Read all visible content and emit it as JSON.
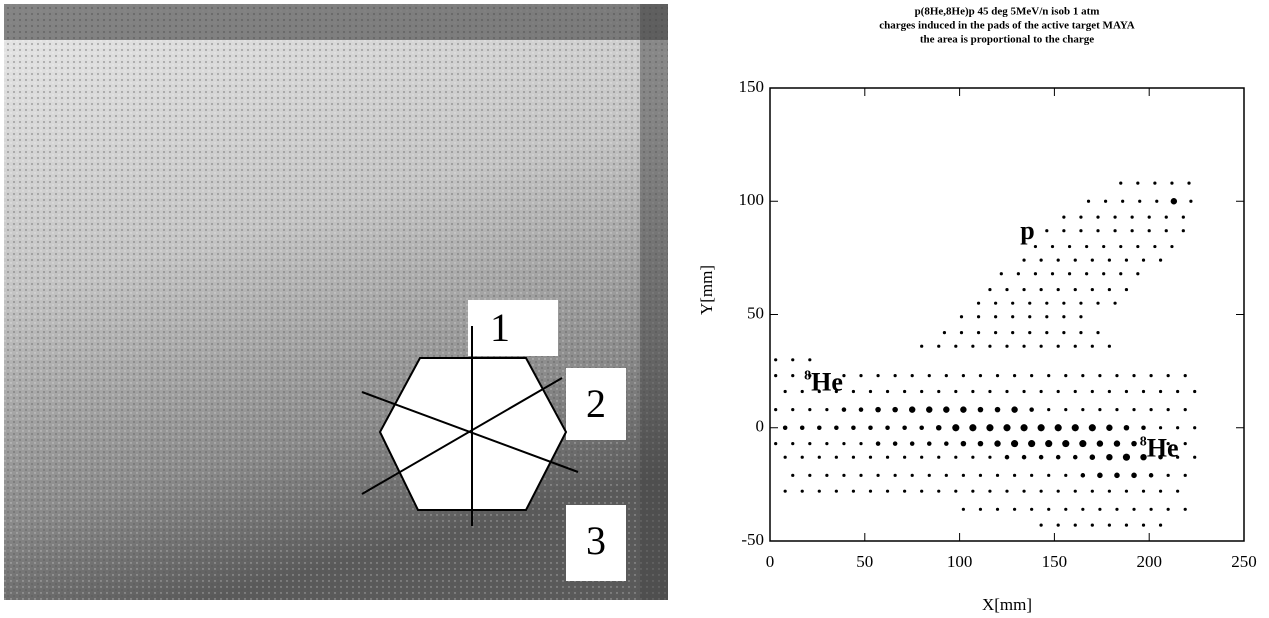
{
  "photo": {
    "labels": [
      "1",
      "2",
      "3"
    ]
  },
  "chart_data": {
    "type": "bubble",
    "title": [
      "p(8He,8He)p 45 deg 5MeV/n isob 1 atm",
      "charges induced in the pads of the active target MAYA",
      "the area is proportional to the charge"
    ],
    "xlabel": "X[mm]",
    "ylabel": "Y[mm]",
    "xlim": [
      0,
      250
    ],
    "xticks": [
      0,
      50,
      100,
      150,
      200,
      250
    ],
    "ylim": [
      -50,
      150
    ],
    "yticks": [
      -50,
      0,
      50,
      100,
      150
    ],
    "color": "#000000",
    "annotations": [
      {
        "text": "p",
        "x": 132,
        "y": 86
      },
      {
        "superscript": "8",
        "text": "He",
        "x": 18,
        "y": 19
      },
      {
        "superscript": "8",
        "text": "He",
        "x": 195,
        "y": -10
      }
    ],
    "rows": [
      {
        "y": 108,
        "x": [
          185,
          194,
          203,
          212,
          221
        ],
        "sizes": [
          1,
          1,
          1,
          1,
          1
        ]
      },
      {
        "y": 100,
        "x": [
          168,
          177,
          186,
          195,
          204,
          213,
          222
        ],
        "sizes": [
          1,
          1,
          1,
          1,
          1,
          4,
          1
        ]
      },
      {
        "y": 93,
        "x": [
          155,
          164,
          173,
          182,
          191,
          200,
          209,
          218
        ],
        "sizes": [
          1,
          1,
          1,
          1,
          1,
          1,
          1,
          1
        ]
      },
      {
        "y": 87,
        "x": [
          146,
          155,
          164,
          173,
          182,
          191,
          200,
          209,
          218
        ],
        "sizes": [
          1,
          1,
          1,
          1,
          1,
          1,
          1,
          1,
          1
        ]
      },
      {
        "y": 80,
        "x": [
          140,
          149,
          158,
          167,
          176,
          185,
          194,
          203,
          212
        ],
        "sizes": [
          1,
          1,
          1,
          1,
          1,
          1,
          1,
          1,
          1
        ]
      },
      {
        "y": 74,
        "x": [
          134,
          143,
          152,
          161,
          170,
          179,
          188,
          197,
          206
        ],
        "sizes": [
          1,
          1,
          1,
          1,
          1,
          1,
          1,
          1,
          1
        ]
      },
      {
        "y": 68,
        "x": [
          122,
          131,
          140,
          149,
          158,
          167,
          176,
          185,
          194
        ],
        "sizes": [
          1,
          1,
          1,
          1,
          1,
          1,
          1,
          1,
          1
        ]
      },
      {
        "y": 61,
        "x": [
          116,
          125,
          134,
          143,
          152,
          161,
          170,
          179,
          188
        ],
        "sizes": [
          1,
          1,
          1,
          1,
          1,
          1,
          1,
          1,
          1
        ]
      },
      {
        "y": 55,
        "x": [
          110,
          119,
          128,
          137,
          146,
          155,
          164,
          173,
          182
        ],
        "sizes": [
          1,
          1,
          1,
          1,
          1,
          1,
          1,
          1,
          1
        ]
      },
      {
        "y": 49,
        "x": [
          101,
          110,
          119,
          128,
          137,
          146,
          155,
          164
        ],
        "sizes": [
          1,
          1,
          1,
          1,
          1,
          1,
          1,
          1
        ]
      },
      {
        "y": 42,
        "x": [
          92,
          101,
          110,
          119,
          128,
          137,
          146,
          155,
          164,
          173
        ],
        "sizes": [
          1,
          1,
          1,
          1,
          1,
          1,
          1,
          1,
          1,
          1
        ]
      },
      {
        "y": 36,
        "x": [
          80,
          89,
          98,
          107,
          116,
          125,
          134,
          143,
          152,
          161,
          170,
          179
        ],
        "sizes": [
          1,
          1,
          1,
          1,
          1,
          1,
          1,
          1,
          1,
          1,
          1,
          1
        ]
      },
      {
        "y": 30,
        "x": [
          3,
          12,
          21
        ],
        "sizes": [
          1,
          1,
          1
        ]
      },
      {
        "y": 23,
        "x": [
          3,
          12,
          21,
          30,
          39,
          48,
          57,
          66,
          75,
          84,
          93,
          102,
          111,
          120,
          129,
          138,
          147,
          156,
          165,
          174,
          183,
          192,
          201,
          210,
          219
        ],
        "sizes": [
          1,
          1,
          1,
          1,
          1,
          1,
          1,
          1,
          1,
          1,
          1,
          1,
          1,
          1,
          1,
          1,
          1,
          1,
          1,
          1,
          1,
          1,
          1,
          1,
          1
        ]
      },
      {
        "y": 16,
        "x": [
          8,
          17,
          26,
          35,
          44,
          53,
          62,
          71,
          80,
          89,
          98,
          107,
          116,
          125,
          134,
          143,
          152,
          161,
          170,
          179,
          188,
          197,
          206,
          215,
          224
        ],
        "sizes": [
          1,
          1,
          1,
          1,
          1,
          1,
          1,
          1,
          1,
          1,
          1,
          1,
          1,
          1,
          1,
          1,
          1,
          1,
          1,
          1,
          1,
          1,
          1,
          1,
          1
        ]
      },
      {
        "y": 8,
        "x": [
          3,
          12,
          21,
          30,
          39,
          48,
          57,
          66,
          75,
          84,
          93,
          102,
          111,
          120,
          129,
          138,
          147,
          156,
          165,
          174,
          183,
          192,
          201,
          210,
          219
        ],
        "sizes": [
          1,
          1,
          1,
          1,
          2,
          2,
          3,
          3,
          4,
          4,
          4,
          4,
          3,
          3,
          4,
          2,
          1,
          1,
          1,
          1,
          1,
          1,
          1,
          1,
          1
        ]
      },
      {
        "y": 0,
        "x": [
          8,
          17,
          26,
          35,
          44,
          53,
          62,
          71,
          80,
          89,
          98,
          107,
          116,
          125,
          134,
          143,
          152,
          161,
          170,
          179,
          188,
          197,
          206,
          215,
          224
        ],
        "sizes": [
          2,
          2,
          2,
          2,
          2,
          2,
          2,
          2,
          2,
          3,
          5,
          5,
          5,
          5,
          5,
          5,
          5,
          5,
          5,
          4,
          3,
          2,
          1,
          1,
          1
        ]
      },
      {
        "y": -7,
        "x": [
          3,
          12,
          21,
          30,
          39,
          48,
          57,
          66,
          75,
          84,
          93,
          102,
          111,
          120,
          129,
          138,
          147,
          156,
          165,
          174,
          183,
          192,
          201,
          210,
          219
        ],
        "sizes": [
          1,
          1,
          1,
          1,
          1,
          1,
          2,
          2,
          2,
          2,
          2,
          3,
          3,
          4,
          5,
          5,
          5,
          5,
          5,
          4,
          4,
          3,
          1,
          1,
          1
        ]
      },
      {
        "y": -13,
        "x": [
          8,
          17,
          26,
          35,
          44,
          53,
          62,
          71,
          80,
          89,
          98,
          107,
          116,
          125,
          134,
          143,
          152,
          161,
          170,
          179,
          188,
          197,
          206,
          215,
          224
        ],
        "sizes": [
          1,
          1,
          1,
          1,
          1,
          1,
          1,
          1,
          1,
          1,
          1,
          1,
          1,
          2,
          2,
          2,
          2,
          2,
          3,
          4,
          5,
          4,
          2,
          1,
          1
        ]
      },
      {
        "y": -21,
        "x": [
          12,
          21,
          30,
          39,
          48,
          57,
          66,
          75,
          84,
          93,
          102,
          111,
          120,
          129,
          138,
          147,
          156,
          165,
          174,
          183,
          192,
          201,
          210,
          219
        ],
        "sizes": [
          1,
          1,
          1,
          1,
          1,
          1,
          1,
          1,
          1,
          1,
          1,
          1,
          1,
          1,
          1,
          1,
          1,
          2,
          3,
          3,
          3,
          2,
          1,
          1
        ]
      },
      {
        "y": -28,
        "x": [
          8,
          17,
          26,
          35,
          44,
          53,
          62,
          71,
          80,
          89,
          98,
          107,
          116,
          125,
          134,
          143,
          152,
          161,
          170,
          179,
          188,
          197,
          206,
          215
        ],
        "sizes": [
          1,
          1,
          1,
          1,
          1,
          1,
          1,
          1,
          1,
          1,
          1,
          1,
          1,
          1,
          1,
          1,
          1,
          1,
          1,
          1,
          1,
          1,
          1,
          1
        ]
      },
      {
        "y": -36,
        "x": [
          102,
          111,
          120,
          129,
          138,
          147,
          156,
          165,
          174,
          183,
          192,
          201,
          210,
          219
        ],
        "sizes": [
          1,
          1,
          1,
          1,
          1,
          1,
          1,
          1,
          1,
          1,
          1,
          1,
          1,
          1
        ]
      },
      {
        "y": -43,
        "x": [
          143,
          152,
          161,
          170,
          179,
          188,
          197,
          206
        ],
        "sizes": [
          1,
          1,
          1,
          1,
          1,
          1,
          1,
          1
        ]
      }
    ]
  }
}
